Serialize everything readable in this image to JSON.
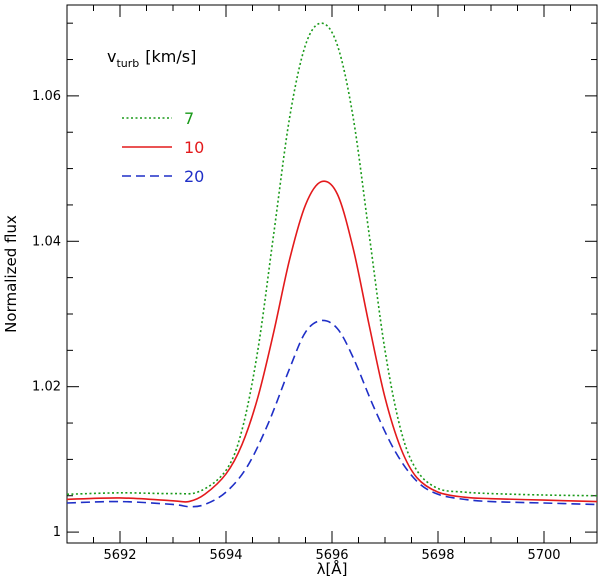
{
  "chart_data": {
    "type": "line",
    "xlabel": "λ[Å]",
    "ylabel": "Normalized flux",
    "xlim": [
      5691,
      5701
    ],
    "ylim": [
      0.9985,
      1.0725
    ],
    "x_ticks": [
      5692,
      5694,
      5696,
      5698,
      5700
    ],
    "x_tick_labels": [
      "5692",
      "5694",
      "5696",
      "5698",
      "5700"
    ],
    "y_ticks": [
      1.0,
      1.02,
      1.04,
      1.06
    ],
    "y_tick_labels": [
      "1",
      "1.02",
      "1.04",
      "1.06"
    ],
    "legend": {
      "title_main": "v",
      "title_sub": "turb",
      "title_unit": "[km/s]",
      "placement": "top-left"
    },
    "series": [
      {
        "name": "7",
        "color": "#1a9a1a",
        "dash": "dotted",
        "x": [
          5691.0,
          5692.0,
          5693.0,
          5693.5,
          5694.0,
          5694.3,
          5694.6,
          5694.9,
          5695.2,
          5695.5,
          5695.8,
          5696.1,
          5696.4,
          5696.7,
          5697.0,
          5697.3,
          5697.6,
          5698.0,
          5698.5,
          5699.0,
          5700.0,
          5701.0
        ],
        "values": [
          1.0052,
          1.0054,
          1.0053,
          1.0056,
          1.0085,
          1.014,
          1.025,
          1.041,
          1.057,
          1.067,
          1.07,
          1.067,
          1.057,
          1.041,
          1.025,
          1.014,
          1.0085,
          1.006,
          1.0055,
          1.0053,
          1.0051,
          1.005
        ]
      },
      {
        "name": "10",
        "color": "#e31a1c",
        "dash": "solid",
        "x": [
          5691.0,
          5692.0,
          5693.0,
          5693.3,
          5693.6,
          5694.0,
          5694.3,
          5694.6,
          5694.9,
          5695.2,
          5695.5,
          5695.8,
          5696.1,
          5696.4,
          5696.7,
          5697.0,
          5697.3,
          5697.6,
          5698.0,
          5698.5,
          5699.0,
          5700.0,
          5701.0
        ],
        "values": [
          1.0045,
          1.0047,
          1.0043,
          1.0042,
          1.0052,
          1.008,
          1.012,
          1.0185,
          1.0275,
          1.0375,
          1.045,
          1.0482,
          1.0465,
          1.039,
          1.0285,
          1.0185,
          1.0115,
          1.0075,
          1.0055,
          1.0048,
          1.0046,
          1.0044,
          1.0042
        ]
      },
      {
        "name": "20",
        "color": "#1f2fc7",
        "dash": "dashed",
        "x": [
          5691.0,
          5692.0,
          5693.0,
          5693.3,
          5693.6,
          5694.0,
          5694.4,
          5694.8,
          5695.2,
          5695.5,
          5695.8,
          5696.1,
          5696.4,
          5696.8,
          5697.2,
          5697.6,
          5698.0,
          5698.5,
          5699.0,
          5700.0,
          5701.0
        ],
        "values": [
          1.004,
          1.0042,
          1.0038,
          1.0035,
          1.0038,
          1.0055,
          1.009,
          1.015,
          1.0225,
          1.0275,
          1.0291,
          1.028,
          1.024,
          1.017,
          1.011,
          1.007,
          1.0052,
          1.0045,
          1.0042,
          1.004,
          1.0038
        ]
      }
    ]
  }
}
